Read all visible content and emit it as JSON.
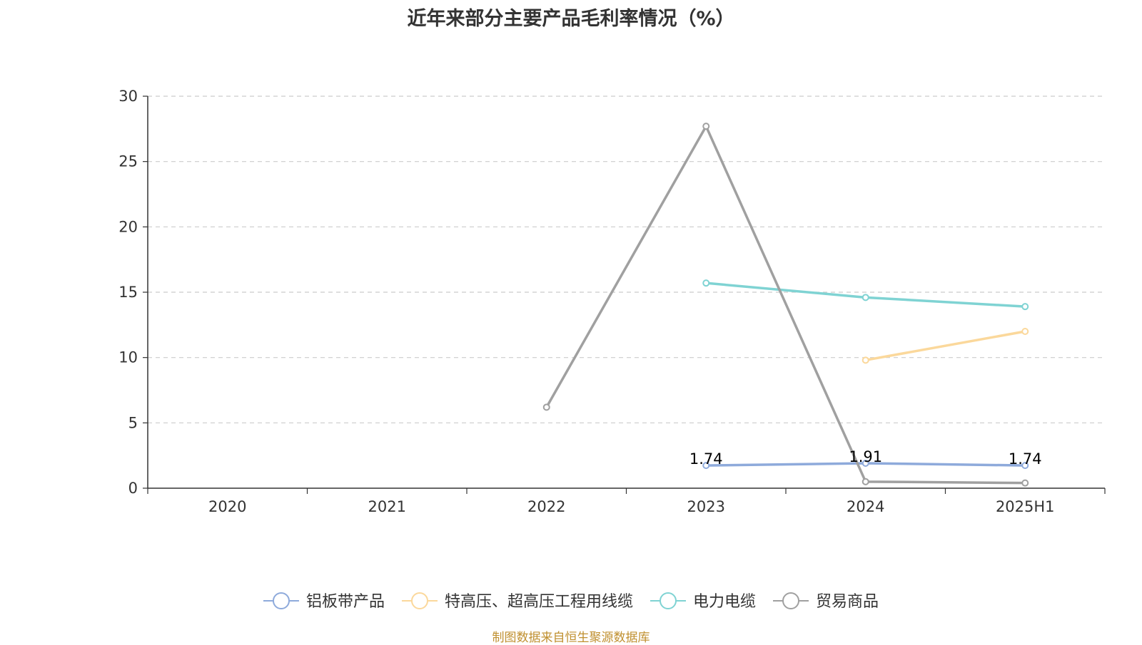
{
  "chart_data": {
    "type": "line",
    "title": "近年来部分主要产品毛利率情况（%）",
    "categories": [
      "2020",
      "2021",
      "2022",
      "2023",
      "2024",
      "2025H1"
    ],
    "ylim": [
      0,
      30
    ],
    "yticks": [
      0,
      5,
      10,
      15,
      20,
      25,
      30
    ],
    "grid": true,
    "legend_position": "bottom",
    "series": [
      {
        "name": "铝板带产品",
        "color": "#8eaadb",
        "values": [
          null,
          null,
          null,
          1.74,
          1.91,
          1.74
        ],
        "labels": [
          "",
          "",
          "",
          "1.74",
          "1.91",
          "1.74"
        ]
      },
      {
        "name": "特高压、超高压工程用线缆",
        "color": "#fbd89b",
        "values": [
          null,
          null,
          null,
          null,
          9.8,
          12.0
        ],
        "labels": []
      },
      {
        "name": "电力电缆",
        "color": "#7fd3d3",
        "values": [
          null,
          null,
          null,
          15.7,
          14.6,
          13.9
        ],
        "labels": []
      },
      {
        "name": "贸易商品",
        "color": "#a0a0a0",
        "values": [
          null,
          null,
          6.2,
          27.7,
          0.5,
          0.4
        ],
        "labels": []
      }
    ]
  },
  "source_note": "制图数据来自恒生聚源数据库"
}
